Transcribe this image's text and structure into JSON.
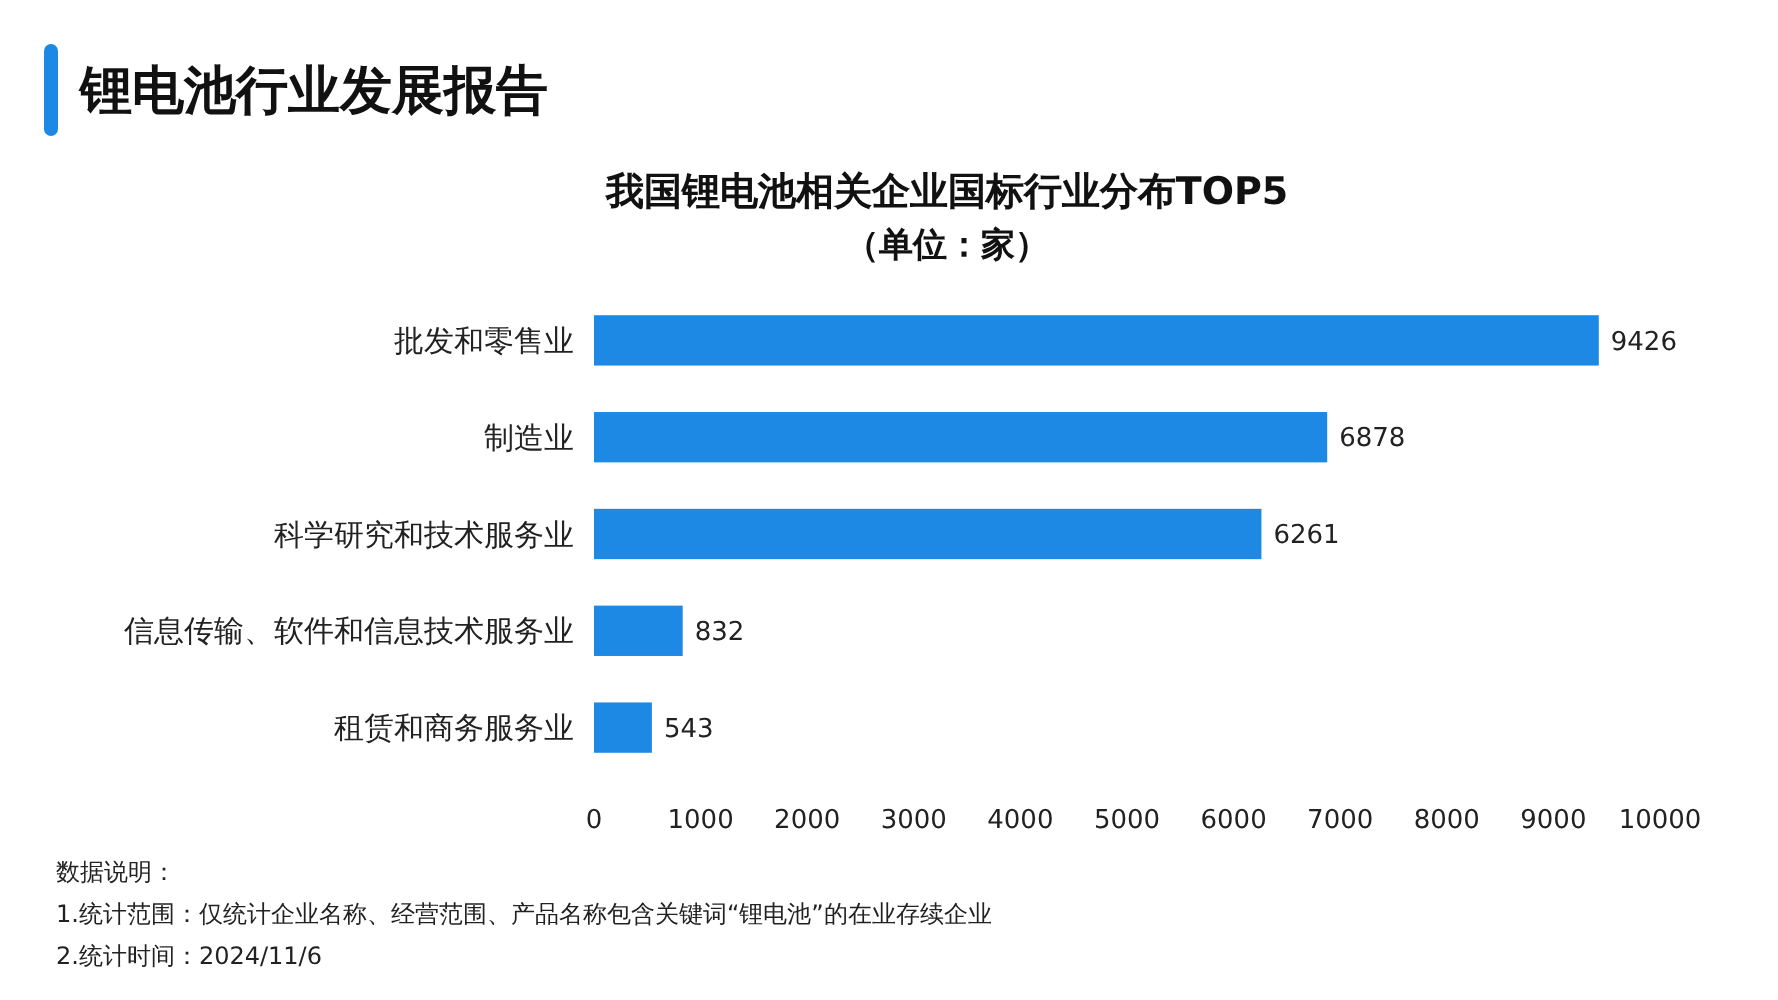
{
  "chart_data": {
    "type": "bar",
    "orientation": "horizontal",
    "title": "锂电池行业发展报告",
    "subtitle": "我国锂电池相关企业国标行业分布TOP5\n（单位：家）",
    "categories": [
      "批发和零售业",
      "制造业",
      "科学研究和技术服务业",
      "信息传输、软件和信息技术服务业",
      "租赁和商务服务业"
    ],
    "values": [
      9426,
      6878,
      6261,
      832,
      543
    ],
    "color": "#1e88e5",
    "xlim": [
      0,
      10000
    ],
    "xticks": [
      0,
      1000,
      2000,
      3000,
      4000,
      5000,
      6000,
      7000,
      8000,
      9000,
      10000
    ],
    "grid": false,
    "data_labels": true,
    "annotations": [
      "数据说明：",
      "1.统计范围：仅统计企业名称、经营范围、产品名称包含关键词“锂电池”的在业存续企业",
      "2.统计时间：2024/11/6"
    ]
  }
}
